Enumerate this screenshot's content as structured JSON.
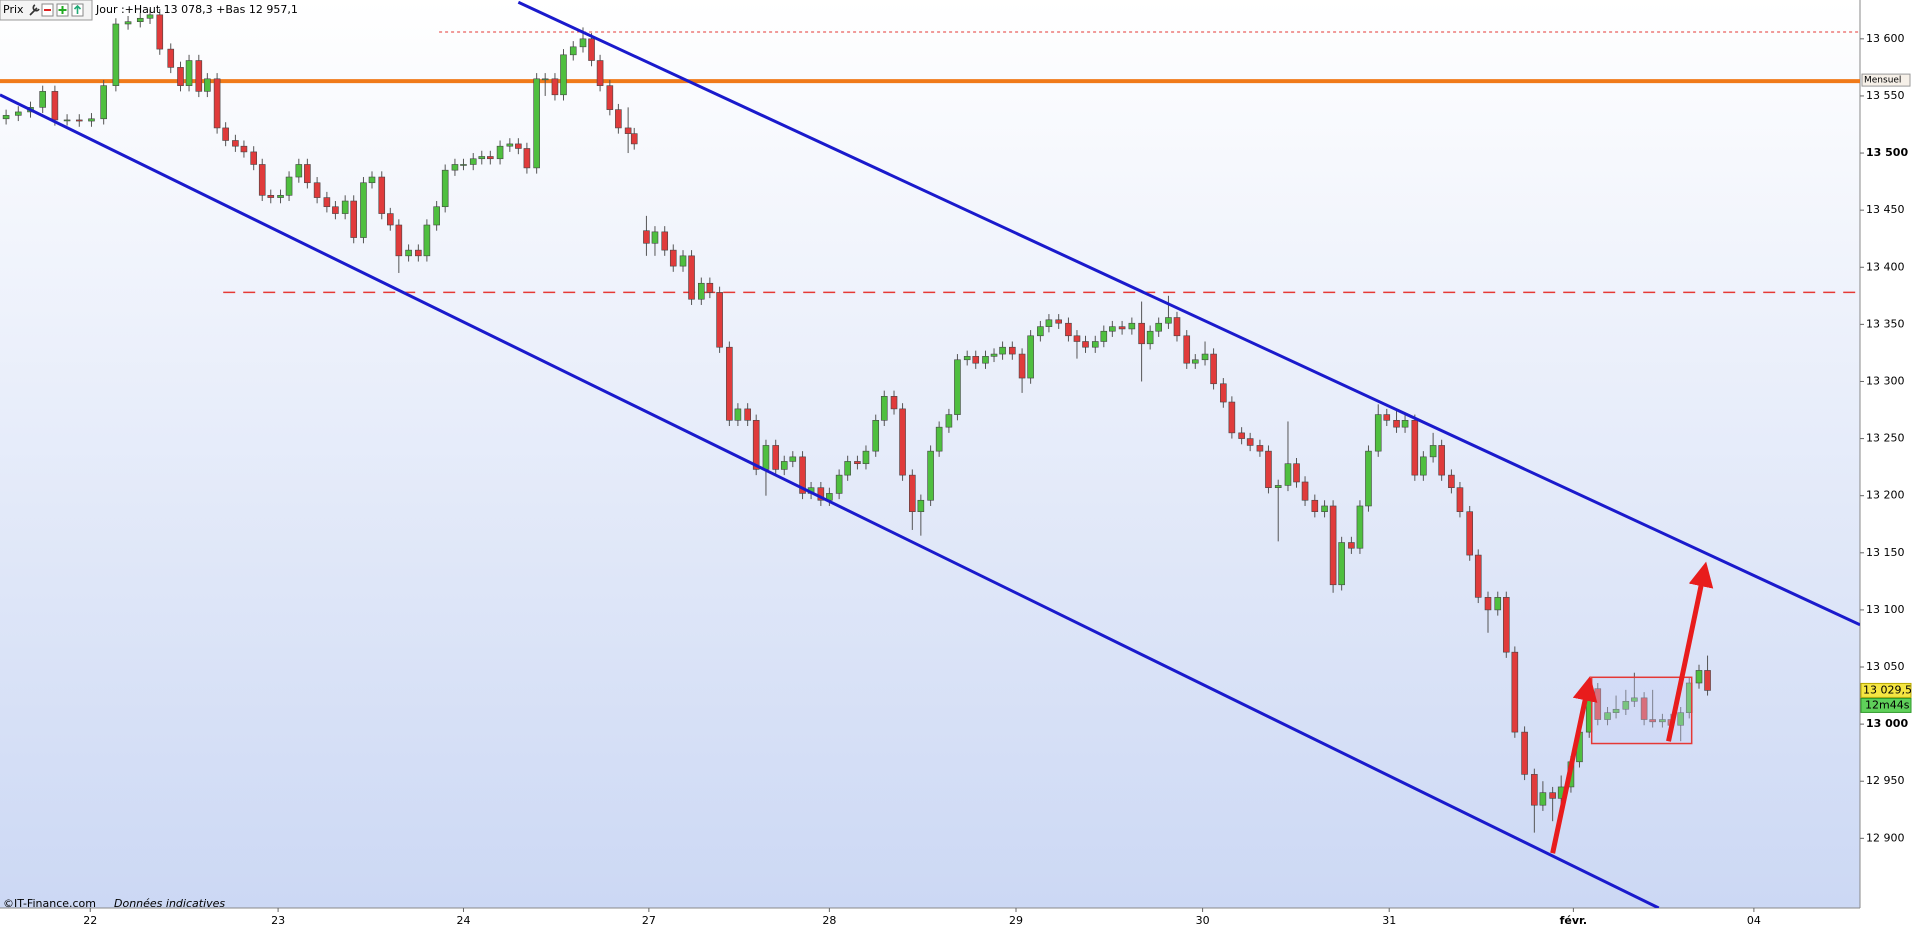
{
  "chart_data": {
    "type": "candlestick",
    "panel_label": "Prix",
    "header": "Jour :+Haut 13 078,3 +Bas 12 957,1",
    "watermark": "©IT-Finance.com",
    "watermark_note": "Données indicatives",
    "up_color": "#4fbf3f",
    "down_color": "#e03b3b",
    "xlim": [
      0,
      1525
    ],
    "ylim": [
      12839,
      13634
    ],
    "xticks": [
      {
        "value": 74,
        "label": "22"
      },
      {
        "value": 228,
        "label": "23"
      },
      {
        "value": 380,
        "label": "24"
      },
      {
        "value": 532,
        "label": "27"
      },
      {
        "value": 680,
        "label": "28"
      },
      {
        "value": 833,
        "label": "29"
      },
      {
        "value": 986,
        "label": "30"
      },
      {
        "value": 1139,
        "label": "31"
      },
      {
        "value": 1290,
        "label": "févr.",
        "bold": true
      },
      {
        "value": 1438,
        "label": "04"
      }
    ],
    "yticks": [
      {
        "value": 12900,
        "label": "12 900"
      },
      {
        "value": 12950,
        "label": "12 950"
      },
      {
        "value": 13000,
        "label": "13 000",
        "bold": true
      },
      {
        "value": 13050,
        "label": "13 050"
      },
      {
        "value": 13100,
        "label": "13 100"
      },
      {
        "value": 13150,
        "label": "13 150"
      },
      {
        "value": 13200,
        "label": "13 200"
      },
      {
        "value": 13250,
        "label": "13 250"
      },
      {
        "value": 13300,
        "label": "13 300"
      },
      {
        "value": 13350,
        "label": "13 350"
      },
      {
        "value": 13400,
        "label": "13 400"
      },
      {
        "value": 13450,
        "label": "13 450"
      },
      {
        "value": 13500,
        "label": "13 500",
        "bold": true
      },
      {
        "value": 13550,
        "label": "13 550"
      },
      {
        "value": 13600,
        "label": "13 600"
      }
    ],
    "x": [
      5,
      15,
      25,
      35,
      45,
      55,
      65,
      75,
      85,
      95,
      105,
      115,
      123,
      131,
      140,
      148,
      155,
      163,
      170,
      178,
      185,
      193,
      200,
      208,
      215,
      222,
      230,
      237,
      245,
      252,
      260,
      268,
      275,
      283,
      290,
      298,
      305,
      313,
      320,
      327,
      335,
      343,
      350,
      358,
      365,
      373,
      380,
      388,
      395,
      402,
      410,
      418,
      425,
      432,
      440,
      447,
      455,
      462,
      470,
      478,
      485,
      492,
      500,
      507,
      515,
      520,
      530,
      537,
      545,
      552,
      560,
      567,
      575,
      582,
      590,
      598,
      605,
      613,
      620,
      628,
      636,
      643,
      650,
      658,
      665,
      673,
      680,
      688,
      695,
      703,
      710,
      718,
      725,
      733,
      740,
      748,
      755,
      763,
      770,
      778,
      785,
      793,
      800,
      808,
      815,
      822,
      830,
      838,
      845,
      853,
      860,
      868,
      876,
      883,
      890,
      898,
      905,
      912,
      920,
      928,
      936,
      943,
      950,
      958,
      965,
      973,
      980,
      988,
      995,
      1003,
      1010,
      1018,
      1025,
      1033,
      1040,
      1048,
      1056,
      1063,
      1070,
      1078,
      1086,
      1093,
      1100,
      1108,
      1115,
      1122,
      1130,
      1137,
      1145,
      1152,
      1160,
      1167,
      1175,
      1182,
      1190,
      1197,
      1205,
      1212,
      1220,
      1228,
      1235,
      1242,
      1250,
      1258,
      1265,
      1273,
      1280,
      1288,
      1295,
      1303,
      1310,
      1318,
      1325,
      1333,
      1340,
      1348,
      1355,
      1363,
      1370,
      1378,
      1385,
      1393,
      1400
    ],
    "open": [
      13530,
      13533,
      13536,
      13540,
      13554,
      13529,
      13529,
      13528,
      13530,
      13559,
      13613,
      13615,
      13618,
      13621,
      13591,
      13575,
      13559,
      13581,
      13554,
      13565,
      13522,
      13511,
      13506,
      13501,
      13490,
      13463,
      13461,
      13463,
      13479,
      13490,
      13474,
      13461,
      13453,
      13447,
      13458,
      13426,
      13474,
      13479,
      13447,
      13437,
      13410,
      13415,
      13410,
      13437,
      13453,
      13485,
      13490,
      13490,
      13495,
      13497,
      13495,
      13506,
      13508,
      13504,
      13487,
      13565,
      13565,
      13551,
      13586,
      13593,
      13600,
      13581,
      13559,
      13538,
      13522,
      13517,
      13432,
      13421,
      13431,
      13415,
      13401,
      13410,
      13372,
      13386,
      13378,
      13330,
      13266,
      13276,
      13266,
      13223,
      13244,
      13223,
      13230,
      13234,
      13202,
      13207,
      13196,
      13202,
      13218,
      13230,
      13228,
      13239,
      13266,
      13287,
      13276,
      13218,
      13186,
      13196,
      13239,
      13260,
      13271,
      13319,
      13322,
      13316,
      13322,
      13324,
      13330,
      13324,
      13303,
      13340,
      13348,
      13354,
      13351,
      13340,
      13335,
      13330,
      13335,
      13344,
      13348,
      13346,
      13351,
      13333,
      13344,
      13351,
      13356,
      13340,
      13316,
      13319,
      13324,
      13298,
      13282,
      13255,
      13250,
      13244,
      13239,
      13207,
      13209,
      13228,
      13212,
      13196,
      13186,
      13191,
      13122,
      13159,
      13154,
      13191,
      13239,
      13271,
      13266,
      13260,
      13266,
      13218,
      13234,
      13244,
      13218,
      13207,
      13186,
      13148,
      13111,
      13100,
      13111,
      13063,
      12993,
      12956,
      12929,
      12940,
      12935,
      12945,
      12967,
      12993,
      13031,
      13004,
      13010,
      13013,
      13020,
      13023,
      13004,
      13002,
      13004,
      12999,
      13010,
      13036,
      13047
    ],
    "high": [
      13538,
      13541,
      13545,
      13559,
      13559,
      13534,
      13534,
      13535,
      13564,
      13618,
      13620,
      13623,
      13626,
      13626,
      13596,
      13580,
      13586,
      13586,
      13570,
      13570,
      13527,
      13516,
      13511,
      13506,
      13495,
      13468,
      13468,
      13484,
      13495,
      13495,
      13479,
      13466,
      13458,
      13463,
      13463,
      13479,
      13484,
      13484,
      13452,
      13442,
      13420,
      13420,
      13442,
      13458,
      13490,
      13495,
      13495,
      13500,
      13502,
      13502,
      13511,
      13513,
      13513,
      13509,
      13570,
      13570,
      13570,
      13591,
      13598,
      13610,
      13605,
      13586,
      13564,
      13543,
      13540,
      13522,
      13445,
      13436,
      13436,
      13420,
      13415,
      13415,
      13391,
      13391,
      13383,
      13335,
      13281,
      13281,
      13271,
      13249,
      13249,
      13235,
      13239,
      13239,
      13212,
      13212,
      13207,
      13223,
      13235,
      13235,
      13244,
      13271,
      13292,
      13292,
      13281,
      13223,
      13201,
      13244,
      13265,
      13276,
      13324,
      13327,
      13327,
      13327,
      13329,
      13335,
      13335,
      13329,
      13345,
      13353,
      13359,
      13359,
      13356,
      13345,
      13340,
      13340,
      13349,
      13353,
      13353,
      13356,
      13370,
      13349,
      13356,
      13375,
      13361,
      13345,
      13324,
      13335,
      13329,
      13303,
      13287,
      13260,
      13255,
      13249,
      13244,
      13214,
      13265,
      13233,
      13217,
      13201,
      13196,
      13196,
      13164,
      13164,
      13196,
      13244,
      13280,
      13276,
      13275,
      13271,
      13271,
      13239,
      13255,
      13249,
      13223,
      13212,
      13191,
      13153,
      13116,
      13116,
      13116,
      13068,
      12998,
      12961,
      12950,
      12945,
      12955,
      12972,
      12998,
      13040,
      13036,
      13015,
      13025,
      13030,
      13045,
      13028,
      13030,
      13009,
      13009,
      13015,
      13041,
      13052,
      13060
    ],
    "low": [
      13525,
      13528,
      13531,
      13535,
      13524,
      13524,
      13523,
      13523,
      13525,
      13554,
      13608,
      13610,
      13613,
      13586,
      13570,
      13554,
      13554,
      13549,
      13549,
      13517,
      13506,
      13501,
      13496,
      13485,
      13458,
      13456,
      13456,
      13458,
      13474,
      13469,
      13456,
      13448,
      13442,
      13442,
      13421,
      13421,
      13469,
      13442,
      13432,
      13395,
      13405,
      13405,
      13405,
      13432,
      13448,
      13480,
      13485,
      13485,
      13490,
      13490,
      13490,
      13501,
      13499,
      13482,
      13482,
      13550,
      13546,
      13546,
      13581,
      13588,
      13576,
      13554,
      13533,
      13517,
      13500,
      13503,
      13410,
      13410,
      13410,
      13396,
      13396,
      13367,
      13367,
      13373,
      13325,
      13261,
      13261,
      13261,
      13218,
      13200,
      13218,
      13218,
      13225,
      13197,
      13197,
      13191,
      13191,
      13197,
      13213,
      13223,
      13223,
      13234,
      13261,
      13271,
      13213,
      13170,
      13165,
      13191,
      13234,
      13255,
      13266,
      13314,
      13311,
      13311,
      13317,
      13319,
      13319,
      13290,
      13298,
      13335,
      13343,
      13346,
      13335,
      13320,
      13325,
      13325,
      13330,
      13339,
      13341,
      13341,
      13300,
      13328,
      13339,
      13346,
      13335,
      13311,
      13311,
      13314,
      13293,
      13277,
      13250,
      13245,
      13239,
      13234,
      13202,
      13160,
      13204,
      13207,
      13191,
      13181,
      13181,
      13115,
      13117,
      13149,
      13149,
      13186,
      13234,
      13261,
      13255,
      13255,
      13213,
      13213,
      13229,
      13213,
      13202,
      13181,
      13143,
      13106,
      13080,
      13095,
      13058,
      12988,
      12951,
      12905,
      12924,
      12915,
      12930,
      12940,
      12962,
      12988,
      12999,
      12999,
      13005,
      13008,
      13015,
      12999,
      12997,
      12997,
      12994,
      12985,
      13005,
      13031,
      13025
    ],
    "close": [
      13533,
      13536,
      13540,
      13554,
      13529,
      13529,
      13528,
      13530,
      13559,
      13613,
      13615,
      13618,
      13621,
      13591,
      13575,
      13559,
      13581,
      13554,
      13565,
      13522,
      13511,
      13506,
      13501,
      13490,
      13463,
      13461,
      13463,
      13479,
      13490,
      13474,
      13461,
      13453,
      13447,
      13458,
      13426,
      13474,
      13479,
      13447,
      13437,
      13410,
      13415,
      13410,
      13437,
      13453,
      13485,
      13490,
      13490,
      13495,
      13497,
      13495,
      13506,
      13508,
      13504,
      13487,
      13565,
      13565,
      13551,
      13586,
      13593,
      13600,
      13581,
      13559,
      13538,
      13522,
      13517,
      13508,
      13421,
      13431,
      13415,
      13401,
      13410,
      13372,
      13386,
      13378,
      13330,
      13266,
      13276,
      13266,
      13223,
      13244,
      13223,
      13230,
      13234,
      13202,
      13207,
      13196,
      13202,
      13218,
      13230,
      13228,
      13239,
      13266,
      13287,
      13276,
      13218,
      13186,
      13196,
      13239,
      13260,
      13271,
      13319,
      13322,
      13316,
      13322,
      13324,
      13330,
      13324,
      13303,
      13340,
      13348,
      13354,
      13351,
      13340,
      13335,
      13330,
      13335,
      13344,
      13348,
      13346,
      13351,
      13333,
      13344,
      13351,
      13356,
      13340,
      13316,
      13319,
      13324,
      13298,
      13282,
      13255,
      13250,
      13244,
      13239,
      13207,
      13209,
      13228,
      13212,
      13196,
      13186,
      13191,
      13122,
      13159,
      13154,
      13191,
      13239,
      13271,
      13266,
      13260,
      13266,
      13218,
      13234,
      13244,
      13218,
      13207,
      13186,
      13148,
      13111,
      13100,
      13111,
      13063,
      12993,
      12956,
      12929,
      12940,
      12935,
      12945,
      12967,
      12993,
      13031,
      13004,
      13010,
      13013,
      13020,
      13023,
      13004,
      13002,
      13004,
      12999,
      13010,
      13036,
      13047,
      13029.5
    ],
    "levels": [
      {
        "value": 13563,
        "color": "#f07a1a",
        "width": 4,
        "dash": "none",
        "from": 0,
        "label": "Mensuel"
      },
      {
        "value": 13378,
        "color": "#e53935",
        "width": 1.5,
        "dash": "12 8",
        "from": 183
      },
      {
        "value": 13606,
        "color": "#e53935",
        "width": 1,
        "dash": "3 3",
        "from": 360
      }
    ],
    "trendlines": [
      {
        "x": [
          425,
          1525
        ],
        "y": [
          13632,
          13087
        ],
        "color": "#1a1acc"
      },
      {
        "x": [
          0,
          1360
        ],
        "y": [
          13551,
          12839
        ],
        "color": "#1a1acc"
      }
    ],
    "arrows": [
      {
        "x": [
          1273,
          1303
        ],
        "y": [
          12887,
          13038
        ],
        "color": "#e81c1c"
      },
      {
        "x": [
          1368,
          1398
        ],
        "y": [
          12985,
          13138
        ],
        "color": "#e81c1c"
      }
    ],
    "box": {
      "x": [
        1305,
        1387
      ],
      "y": [
        12983,
        13041
      ],
      "color": "#e53935"
    },
    "last_price": {
      "value": 13029.5,
      "label": "13 029,5"
    },
    "timer": "12m44s"
  }
}
